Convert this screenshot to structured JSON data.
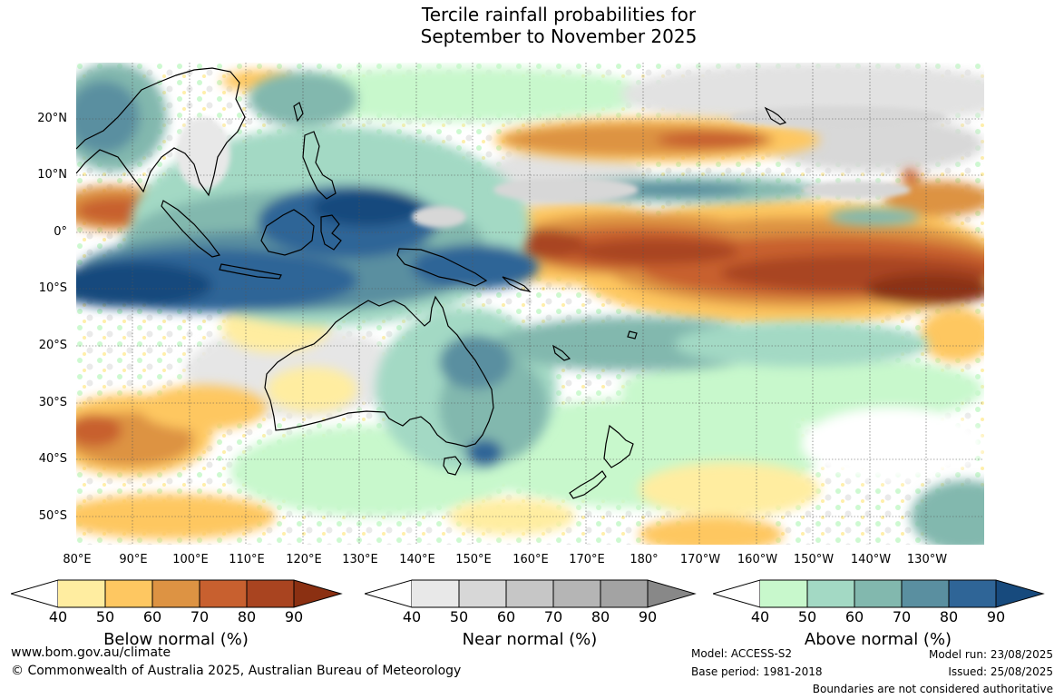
{
  "title": {
    "line1": "Tercile rainfall probabilities for",
    "line2": "September to November 2025"
  },
  "map": {
    "lat_labels": [
      "20°N",
      "10°N",
      "0°",
      "10°S",
      "20°S",
      "30°S",
      "40°S",
      "50°S"
    ],
    "lon_labels": [
      "80°E",
      "90°E",
      "100°E",
      "110°E",
      "120°E",
      "130°E",
      "140°E",
      "150°E",
      "160°E",
      "170°E",
      "180°",
      "170°W",
      "160°W",
      "150°W",
      "140°W",
      "130°W"
    ],
    "ocean_color": "#ffffff",
    "coast_color": "#000000"
  },
  "colorbars": [
    {
      "id": "below",
      "title": "Below normal (%)",
      "ticks": [
        "40",
        "50",
        "60",
        "70",
        "80",
        "90"
      ],
      "colors": [
        "#ffffff",
        "#ffeda0",
        "#fec761",
        "#dd9343",
        "#c8602f",
        "#a94420",
        "#8b3012"
      ]
    },
    {
      "id": "near",
      "title": "Near normal (%)",
      "ticks": [
        "40",
        "50",
        "60",
        "70",
        "80",
        "90"
      ],
      "colors": [
        "#ffffff",
        "#e8e8e8",
        "#d7d7d7",
        "#c6c6c6",
        "#b5b5b5",
        "#a3a3a3",
        "#888888"
      ]
    },
    {
      "id": "above",
      "title": "Above normal (%)",
      "ticks": [
        "40",
        "50",
        "60",
        "70",
        "80",
        "90"
      ],
      "colors": [
        "#ffffff",
        "#c8f8cc",
        "#a3d9c4",
        "#82b8ae",
        "#5a8fa0",
        "#2f6597",
        "#174a7d"
      ]
    }
  ],
  "footer": {
    "website": "www.bom.gov.au/climate",
    "copyright": "© Commonwealth of Australia 2025, Australian Bureau of Meteorology",
    "model": "Model: ACCESS-S2",
    "base_period": "Base period: 1981-2018",
    "model_run": "Model run: 23/08/2025",
    "issued": "Issued: 25/08/2025",
    "disclaimer": "Boundaries are not considered authoritative"
  }
}
